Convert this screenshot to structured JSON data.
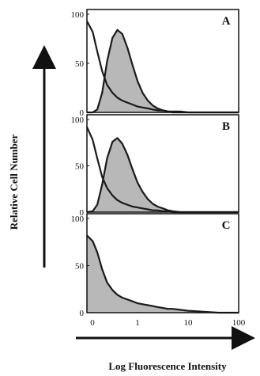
{
  "chart_data": {
    "type": "area",
    "xlabel": "Log Fluorescence Intensity",
    "ylabel": "Relative Cell Number",
    "x_scale": "log",
    "xlim": [
      0.1,
      100
    ],
    "ylim": [
      0,
      100
    ],
    "x_ticks": [
      "0",
      "1",
      "10",
      "100"
    ],
    "y_ticks": [
      "0",
      "50",
      "100"
    ],
    "panels": [
      {
        "label": "A",
        "series": [
          {
            "fill": "#b8b8b8",
            "x": [
              0.1,
              0.13,
              0.16,
              0.2,
              0.25,
              0.32,
              0.4,
              0.5,
              0.63,
              0.8,
              1.0,
              1.26,
              1.6,
              2.0,
              2.5,
              3.2,
              4.0,
              5.0,
              7.0,
              10,
              20,
              40,
              100
            ],
            "values": [
              0,
              0,
              3,
              20,
              52,
              76,
              84,
              80,
              66,
              48,
              32,
              20,
              12,
              7,
              4,
              2,
              1,
              0,
              0,
              0,
              0,
              0,
              0
            ]
          },
          {
            "fill": "none",
            "x": [
              0.1,
              0.13,
              0.16,
              0.2,
              0.25,
              0.32,
              0.4,
              0.5,
              0.63,
              0.8,
              1.0,
              1.26,
              1.6,
              2.0,
              2.5,
              3.2,
              4.0,
              5.0,
              7.0,
              10,
              20,
              40,
              100
            ],
            "values": [
              93,
              82,
              62,
              42,
              28,
              20,
              15,
              12,
              10,
              8,
              6,
              5,
              4,
              3,
              2,
              2,
              1,
              1,
              1,
              0,
              0,
              0,
              0
            ]
          }
        ]
      },
      {
        "label": "B",
        "series": [
          {
            "fill": "#b8b8b8",
            "x": [
              0.1,
              0.13,
              0.16,
              0.2,
              0.25,
              0.32,
              0.4,
              0.5,
              0.63,
              0.8,
              1.0,
              1.26,
              1.6,
              2.0,
              2.5,
              3.2,
              4.0,
              5.0,
              7.0,
              10,
              20,
              40,
              100
            ],
            "values": [
              0,
              1,
              8,
              30,
              58,
              76,
              80,
              74,
              62,
              46,
              32,
              22,
              14,
              9,
              6,
              4,
              2,
              1,
              0,
              0,
              0,
              0,
              0
            ]
          },
          {
            "fill": "none",
            "x": [
              0.1,
              0.13,
              0.16,
              0.2,
              0.25,
              0.32,
              0.4,
              0.5,
              0.63,
              0.8,
              1.0,
              1.26,
              1.6,
              2.0,
              2.5,
              3.2,
              4.0,
              5.0,
              7.0,
              10,
              20,
              40,
              100
            ],
            "values": [
              92,
              78,
              58,
              38,
              26,
              18,
              13,
              10,
              8,
              6,
              5,
              4,
              3,
              2,
              2,
              1,
              1,
              0,
              0,
              0,
              0,
              0,
              0
            ]
          }
        ]
      },
      {
        "label": "C",
        "series": [
          {
            "fill": "#b8b8b8",
            "x": [
              0.1,
              0.13,
              0.16,
              0.2,
              0.25,
              0.32,
              0.4,
              0.5,
              0.63,
              0.8,
              1.0,
              1.26,
              1.6,
              2.0,
              2.5,
              3.2,
              4.0,
              5.0,
              7.0,
              10,
              20,
              40,
              100
            ],
            "values": [
              82,
              76,
              64,
              46,
              32,
              24,
              19,
              16,
              14,
              12,
              10,
              9,
              8,
              7,
              6,
              5,
              4,
              4,
              3,
              2,
              1,
              0,
              0
            ]
          }
        ]
      }
    ]
  }
}
